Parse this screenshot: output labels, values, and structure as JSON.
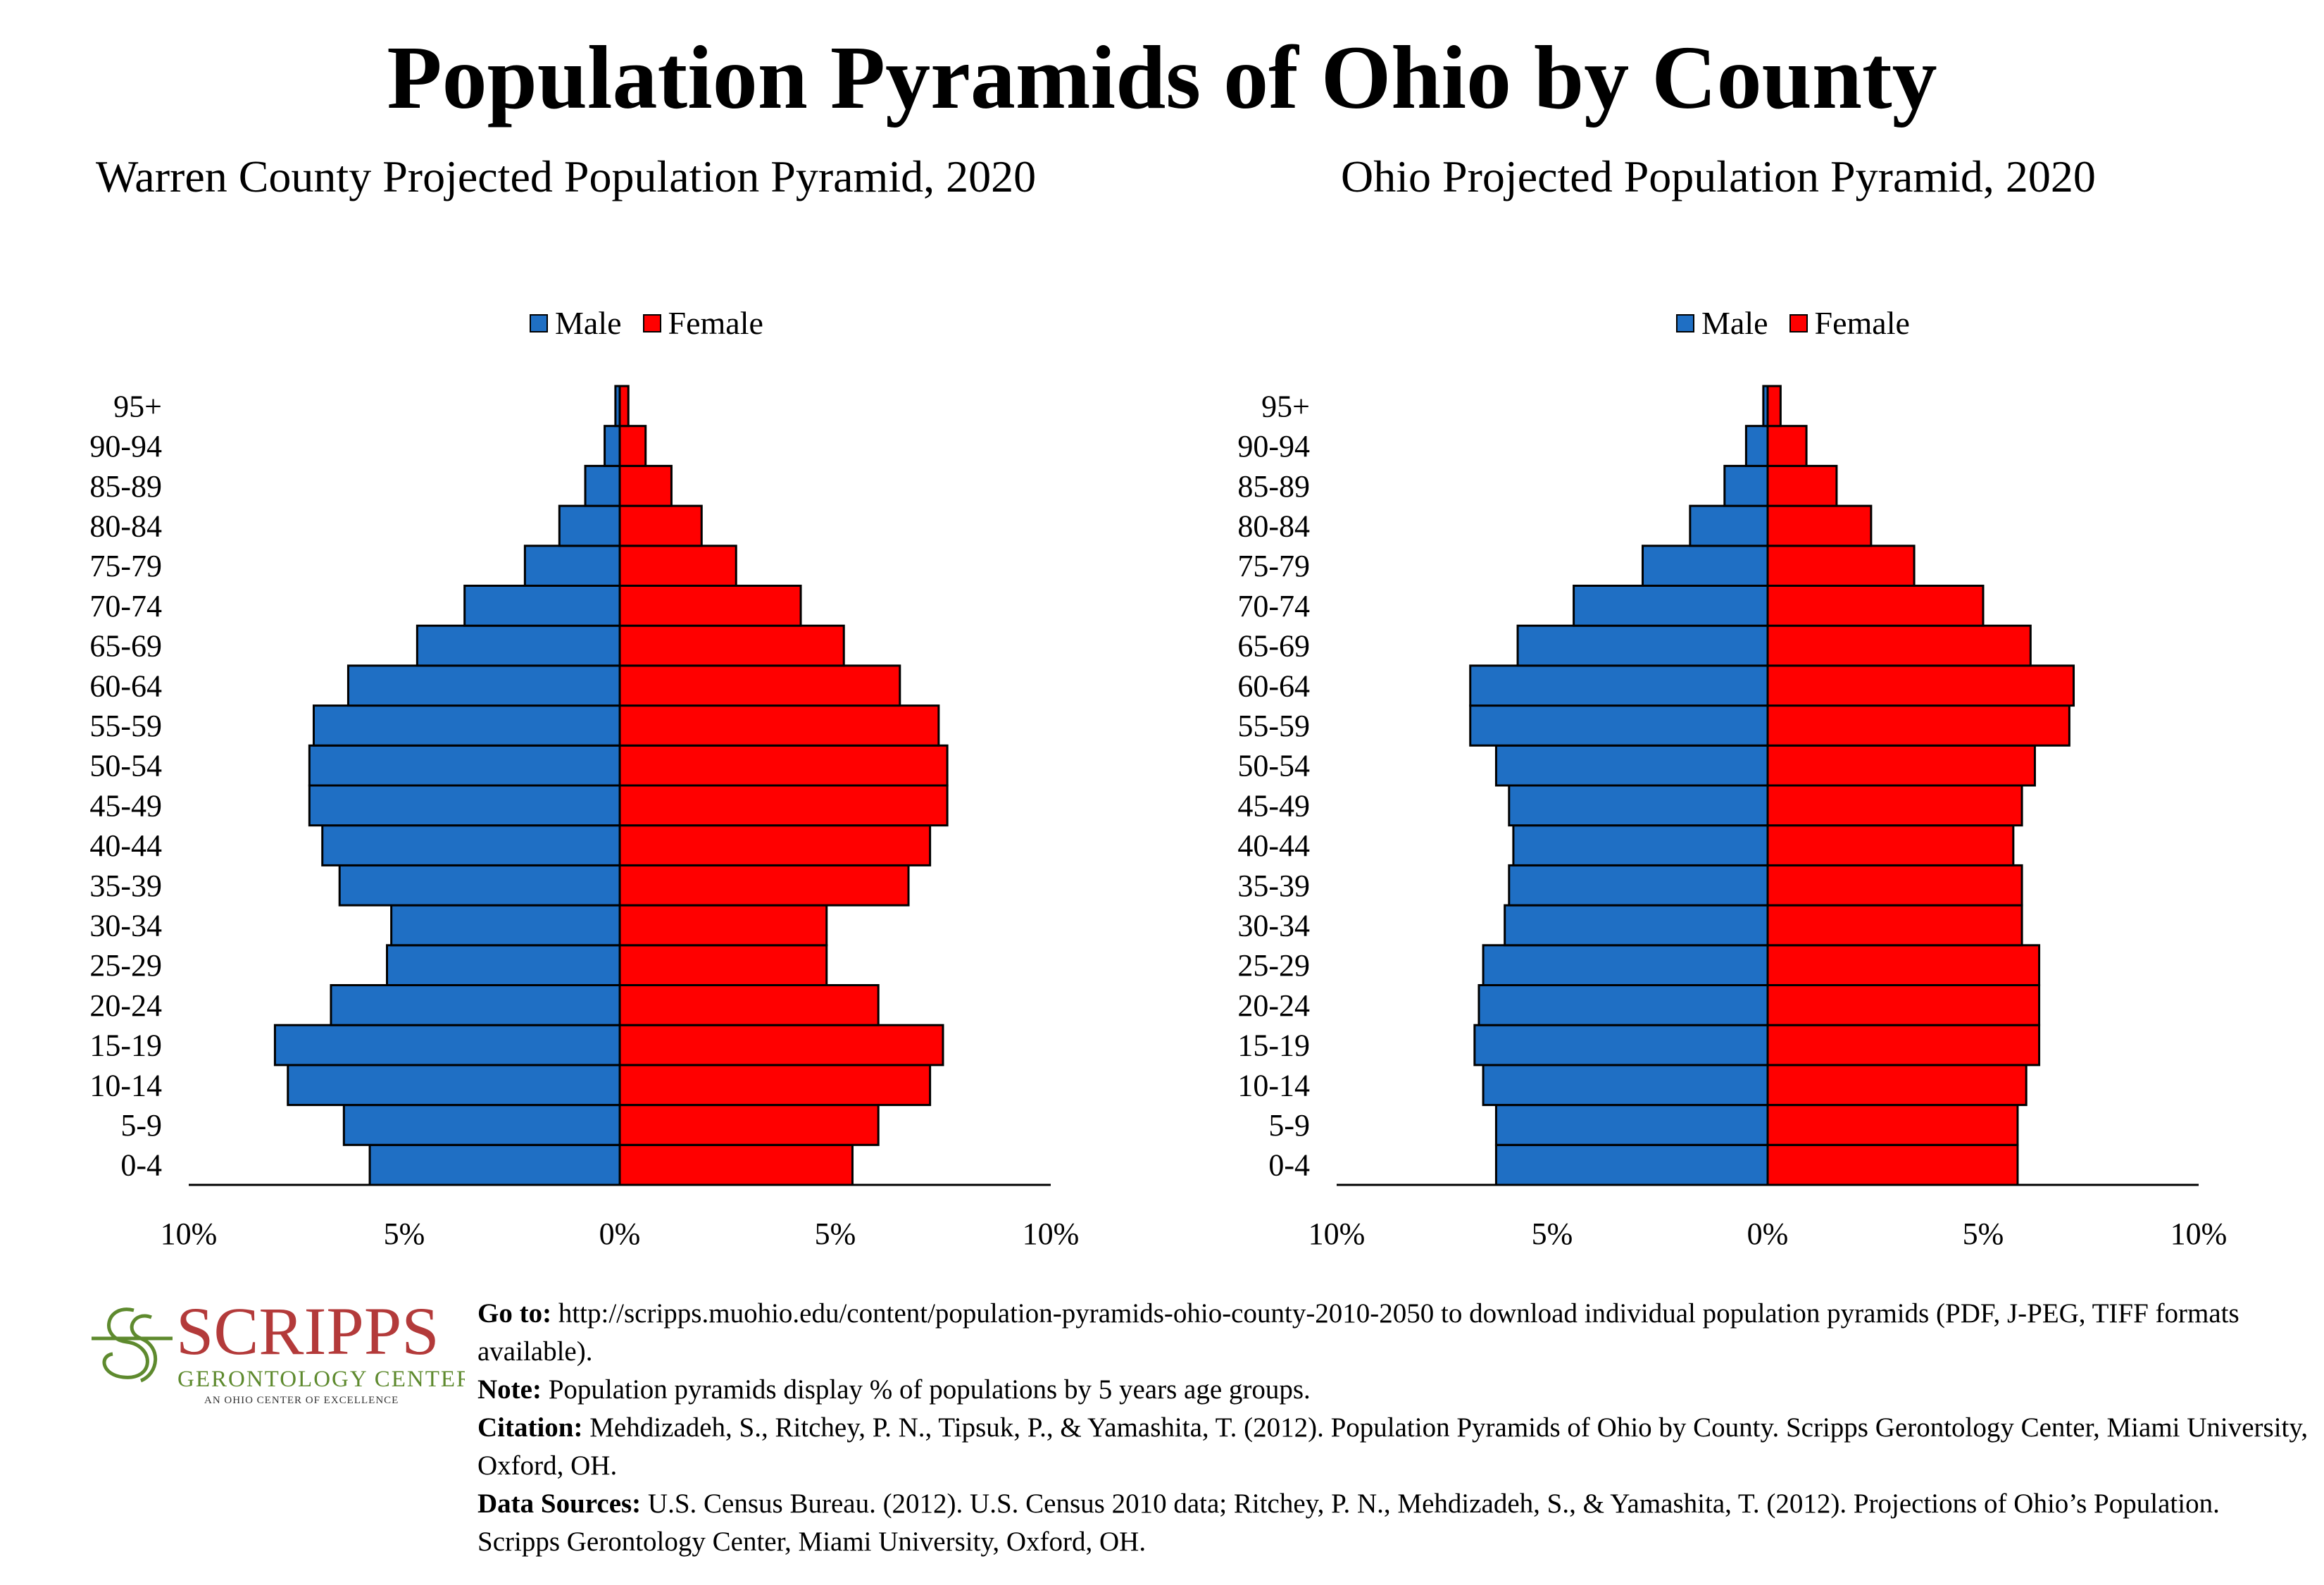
{
  "title": "Population Pyramids of Ohio by County",
  "chart_data": [
    {
      "type": "bar",
      "orientation": "population-pyramid",
      "title": "Warren County Projected Population Pyramid, 2020",
      "categories": [
        "0-4",
        "5-9",
        "10-14",
        "15-19",
        "20-24",
        "25-29",
        "30-34",
        "35-39",
        "40-44",
        "45-49",
        "50-54",
        "55-59",
        "60-64",
        "65-69",
        "70-74",
        "75-79",
        "80-84",
        "85-89",
        "90-94",
        "95+"
      ],
      "series": [
        {
          "name": "Male",
          "color": "#1f6fc4",
          "values": [
            5.8,
            6.4,
            7.7,
            8.0,
            6.7,
            5.4,
            5.3,
            6.5,
            6.9,
            7.2,
            7.2,
            7.1,
            6.3,
            4.7,
            3.6,
            2.2,
            1.4,
            0.8,
            0.35,
            0.1
          ]
        },
        {
          "name": "Female",
          "color": "#ff0000",
          "values": [
            5.4,
            6.0,
            7.2,
            7.5,
            6.0,
            4.8,
            4.8,
            6.7,
            7.2,
            7.6,
            7.6,
            7.4,
            6.5,
            5.2,
            4.2,
            2.7,
            1.9,
            1.2,
            0.6,
            0.2
          ]
        }
      ],
      "xlim": [
        -10,
        10
      ],
      "xticks": [
        "10%",
        "5%",
        "0%",
        "5%",
        "10%"
      ],
      "legend": "top-center",
      "grid": false
    },
    {
      "type": "bar",
      "orientation": "population-pyramid",
      "title": "Ohio Projected Population Pyramid, 2020",
      "categories": [
        "0-4",
        "5-9",
        "10-14",
        "15-19",
        "20-24",
        "25-29",
        "30-34",
        "35-39",
        "40-44",
        "45-49",
        "50-54",
        "55-59",
        "60-64",
        "65-69",
        "70-74",
        "75-79",
        "80-84",
        "85-89",
        "90-94",
        "95+"
      ],
      "series": [
        {
          "name": "Male",
          "color": "#1f6fc4",
          "values": [
            6.3,
            6.3,
            6.6,
            6.8,
            6.7,
            6.6,
            6.1,
            6.0,
            5.9,
            6.0,
            6.3,
            6.9,
            6.9,
            5.8,
            4.5,
            2.9,
            1.8,
            1.0,
            0.5,
            0.1
          ]
        },
        {
          "name": "Female",
          "color": "#ff0000",
          "values": [
            5.8,
            5.8,
            6.0,
            6.3,
            6.3,
            6.3,
            5.9,
            5.9,
            5.7,
            5.9,
            6.2,
            7.0,
            7.1,
            6.1,
            5.0,
            3.4,
            2.4,
            1.6,
            0.9,
            0.3
          ]
        }
      ],
      "xlim": [
        -10,
        10
      ],
      "xticks": [
        "10%",
        "5%",
        "0%",
        "5%",
        "10%"
      ],
      "legend": "top-center",
      "grid": false
    }
  ],
  "logo": {
    "name": "SCRIPPS",
    "line2": "GERONTOLOGY CENTER",
    "line3": "AN OHIO CENTER OF EXCELLENCE",
    "name_color": "#b33a3a",
    "accent_color": "#5e8a2e"
  },
  "notes": {
    "goto_label": "Go to:",
    "goto_text": " http://scripps.muohio.edu/content/population-pyramids-ohio-county-2010-2050 to download individual population pyramids (PDF, J-PEG, TIFF formats available).",
    "note_label": "Note:",
    "note_text": " Population pyramids display % of populations by 5 years age groups.",
    "citation_label": "Citation:",
    "citation_text": " Mehdizadeh, S., Ritchey, P. N., Tipsuk, P., & Yamashita, T. (2012). Population Pyramids of Ohio by County. Scripps Gerontology Center, Miami University, Oxford, OH.",
    "sources_label": "Data Sources:",
    "sources_text": " U.S. Census Bureau. (2012). U.S. Census 2010 data; Ritchey, P. N., Mehdizadeh, S., & Yamashita, T. (2012). Projections of Ohio’s Population. Scripps Gerontology Center, Miami University, Oxford, OH."
  }
}
